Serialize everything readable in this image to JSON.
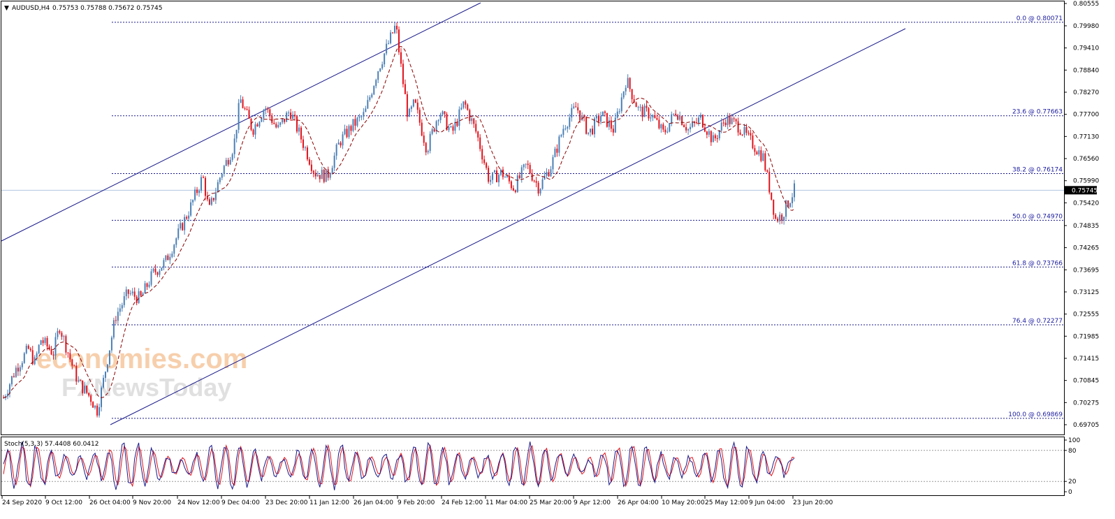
{
  "header": {
    "symbol": "AUDUSD,H4",
    "ohlc": "0.75753 0.75788 0.75672 0.75745"
  },
  "watermark": {
    "line1": "economies.com",
    "line2": "FXNewsToday"
  },
  "colors": {
    "bull": "#4a7fb5",
    "bear": "#e0121b",
    "ma": "#8b0000",
    "channel": "#1a1a8c",
    "fib": "#1a1a8c",
    "stoch_main": "#1a1a8c",
    "stoch_signal": "#e0121b",
    "price_tag_bg": "#000000",
    "current_line": "#b0c4de"
  },
  "chart_data": {
    "type": "candlestick",
    "ylim": [
      0.69705,
      0.80555
    ],
    "y_ticks": [
      "0.80555",
      "0.79980",
      "0.79410",
      "0.78840",
      "0.78270",
      "0.77700",
      "0.77130",
      "0.76560",
      "0.75990",
      "0.75420",
      "0.74835",
      "0.74265",
      "0.73695",
      "0.73125",
      "0.72555",
      "0.71985",
      "0.71415",
      "0.70845",
      "0.70275",
      "0.69705"
    ],
    "x_ticks": [
      "24 Sep 2020",
      "9 Oct 12:00",
      "26 Oct 04:00",
      "9 Nov 20:00",
      "24 Nov 12:00",
      "9 Dec 04:00",
      "23 Dec 20:00",
      "11 Jan 12:00",
      "26 Jan 04:00",
      "9 Feb 20:00",
      "24 Feb 12:00",
      "11 Mar 04:00",
      "25 Mar 20:00",
      "9 Apr 12:00",
      "26 Apr 04:00",
      "10 May 20:00",
      "25 May 12:00",
      "9 Jun 04:00",
      "23 Jun 20:00"
    ],
    "current_price": "0.75745",
    "price_path": [
      [
        0,
        0.704
      ],
      [
        2,
        0.7115
      ],
      [
        4,
        0.7165
      ],
      [
        5,
        0.713
      ],
      [
        6,
        0.719
      ],
      [
        8,
        0.7155
      ],
      [
        9,
        0.7225
      ],
      [
        11,
        0.7125
      ],
      [
        12,
        0.708
      ],
      [
        14,
        0.704
      ],
      [
        15,
        0.7005
      ],
      [
        16,
        0.708
      ],
      [
        18,
        0.725
      ],
      [
        20,
        0.731
      ],
      [
        22,
        0.7295
      ],
      [
        24,
        0.736
      ],
      [
        26,
        0.739
      ],
      [
        28,
        0.746
      ],
      [
        30,
        0.753
      ],
      [
        32,
        0.761
      ],
      [
        33,
        0.752
      ],
      [
        35,
        0.762
      ],
      [
        37,
        0.769
      ],
      [
        38,
        0.781
      ],
      [
        40,
        0.773
      ],
      [
        42,
        0.779
      ],
      [
        44,
        0.773
      ],
      [
        46,
        0.778
      ],
      [
        48,
        0.77
      ],
      [
        50,
        0.762
      ],
      [
        52,
        0.761
      ],
      [
        54,
        0.77
      ],
      [
        56,
        0.774
      ],
      [
        58,
        0.777
      ],
      [
        60,
        0.788
      ],
      [
        62,
        0.796
      ],
      [
        63,
        0.8
      ],
      [
        64,
        0.787
      ],
      [
        65,
        0.776
      ],
      [
        66,
        0.78
      ],
      [
        68,
        0.768
      ],
      [
        70,
        0.778
      ],
      [
        72,
        0.772
      ],
      [
        74,
        0.78
      ],
      [
        76,
        0.772
      ],
      [
        78,
        0.76
      ],
      [
        80,
        0.762
      ],
      [
        82,
        0.758
      ],
      [
        84,
        0.764
      ],
      [
        86,
        0.758
      ],
      [
        88,
        0.764
      ],
      [
        90,
        0.774
      ],
      [
        92,
        0.779
      ],
      [
        94,
        0.772
      ],
      [
        96,
        0.777
      ],
      [
        98,
        0.773
      ],
      [
        100,
        0.786
      ],
      [
        102,
        0.778
      ],
      [
        104,
        0.777
      ],
      [
        106,
        0.772
      ],
      [
        108,
        0.778
      ],
      [
        110,
        0.773
      ],
      [
        112,
        0.776
      ],
      [
        114,
        0.77
      ],
      [
        116,
        0.776
      ],
      [
        118,
        0.774
      ],
      [
        120,
        0.77
      ],
      [
        122,
        0.766
      ],
      [
        124,
        0.75
      ],
      [
        125,
        0.751
      ],
      [
        127,
        0.7575
      ]
    ],
    "fib_levels": [
      {
        "label": "0.0 @ 0.80071",
        "price": 0.80071
      },
      {
        "label": "23.6 @ 0.77663",
        "price": 0.77663
      },
      {
        "label": "38.2 @ 0.76174",
        "price": 0.76174
      },
      {
        "label": "50.0 @ 0.74970",
        "price": 0.7497
      },
      {
        "label": "61.8 @ 0.73766",
        "price": 0.73766
      },
      {
        "label": "76.4 @ 0.72277",
        "price": 0.72277
      },
      {
        "label": "100.0 @ 0.69869",
        "price": 0.69869
      }
    ],
    "stochastic": {
      "label": "Stoch(5,3,3) 57.4408 60.0412",
      "ylim": [
        0,
        100
      ],
      "y_ticks": [
        "100",
        "80",
        "20",
        "0"
      ],
      "levels": [
        80,
        20
      ]
    }
  }
}
